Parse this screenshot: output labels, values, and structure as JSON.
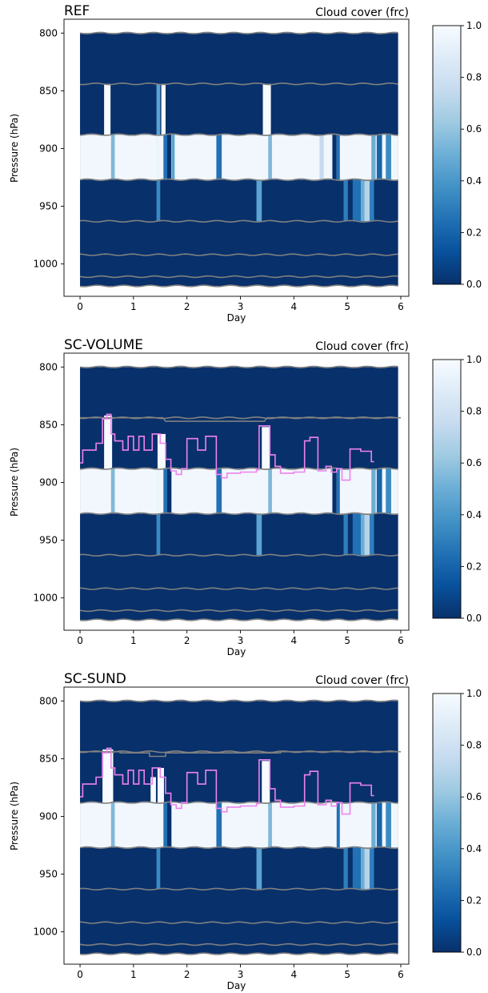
{
  "figure": {
    "colorbar_label_ticks": [
      "0.0",
      "0.2",
      "0.4",
      "0.6",
      "0.8",
      "1.0"
    ],
    "colormap": [
      "#08306b",
      "#08519c",
      "#2171b5",
      "#4292c6",
      "#6baed6",
      "#9ecae1",
      "#c6dbef",
      "#deebf7",
      "#f7fbff"
    ],
    "colors": {
      "level_line": "#808080",
      "trace_line": "#ee82ee",
      "background": "#08306b"
    }
  },
  "chart_data": [
    {
      "type": "heatmap",
      "title": "REF",
      "subtitle": "Cloud cover (frc)",
      "xlabel": "Day",
      "ylabel": "Pressure (hPa)",
      "xticks": [
        "0",
        "1",
        "2",
        "3",
        "4",
        "5",
        "6"
      ],
      "yticks": [
        "800",
        "850",
        "900",
        "950",
        "1000"
      ],
      "xlim": [
        -0.3,
        6.15
      ],
      "ylim": [
        1028,
        788
      ],
      "colorbar_range": [
        0.0,
        1.0
      ],
      "level_lines_hPa": [
        800,
        844,
        888,
        927,
        963,
        992,
        1011,
        1019
      ],
      "cloud_layer": {
        "top_hPa": 888,
        "bottom_hPa": 927,
        "base_value": 0.97
      },
      "column_features": [
        {
          "day": 0.45,
          "width": 0.12,
          "top_hPa": 844,
          "bottom_hPa": 888,
          "value": 1.0
        },
        {
          "day": 1.52,
          "width": 0.08,
          "top_hPa": 844,
          "bottom_hPa": 888,
          "value": 1.0
        },
        {
          "day": 1.43,
          "width": 0.07,
          "top_hPa": 844,
          "bottom_hPa": 888,
          "value": 0.45
        },
        {
          "day": 3.42,
          "width": 0.15,
          "top_hPa": 844,
          "bottom_hPa": 888,
          "value": 1.0
        },
        {
          "day": 0.58,
          "width": 0.07,
          "top_hPa": 888,
          "bottom_hPa": 927,
          "value": 0.55
        },
        {
          "day": 1.42,
          "width": 0.07,
          "top_hPa": 888,
          "bottom_hPa": 927,
          "value": 0.95
        },
        {
          "day": 1.56,
          "width": 0.08,
          "top_hPa": 888,
          "bottom_hPa": 927,
          "value": 0.25
        },
        {
          "day": 1.63,
          "width": 0.08,
          "top_hPa": 888,
          "bottom_hPa": 927,
          "value": 0.0
        },
        {
          "day": 1.72,
          "width": 0.05,
          "top_hPa": 888,
          "bottom_hPa": 927,
          "value": 0.45
        },
        {
          "day": 2.55,
          "width": 0.1,
          "top_hPa": 888,
          "bottom_hPa": 927,
          "value": 0.25
        },
        {
          "day": 3.52,
          "width": 0.07,
          "top_hPa": 888,
          "bottom_hPa": 927,
          "value": 0.55
        },
        {
          "day": 4.48,
          "width": 0.08,
          "top_hPa": 888,
          "bottom_hPa": 927,
          "value": 0.75
        },
        {
          "day": 4.72,
          "width": 0.08,
          "top_hPa": 888,
          "bottom_hPa": 927,
          "value": 0.0
        },
        {
          "day": 4.8,
          "width": 0.06,
          "top_hPa": 888,
          "bottom_hPa": 927,
          "value": 0.25
        },
        {
          "day": 5.45,
          "width": 0.08,
          "top_hPa": 888,
          "bottom_hPa": 927,
          "value": 0.5
        },
        {
          "day": 5.55,
          "width": 0.1,
          "top_hPa": 888,
          "bottom_hPa": 927,
          "value": 0.2
        },
        {
          "day": 5.72,
          "width": 0.1,
          "top_hPa": 888,
          "bottom_hPa": 927,
          "value": 0.35
        },
        {
          "day": 1.43,
          "width": 0.07,
          "top_hPa": 927,
          "bottom_hPa": 963,
          "value": 0.35
        },
        {
          "day": 3.3,
          "width": 0.1,
          "top_hPa": 927,
          "bottom_hPa": 963,
          "value": 0.45
        },
        {
          "day": 4.93,
          "width": 0.08,
          "top_hPa": 927,
          "bottom_hPa": 963,
          "value": 0.3
        },
        {
          "day": 5.1,
          "width": 0.15,
          "top_hPa": 927,
          "bottom_hPa": 963,
          "value": 0.25
        },
        {
          "day": 5.25,
          "width": 0.07,
          "top_hPa": 927,
          "bottom_hPa": 963,
          "value": 0.5
        },
        {
          "day": 5.32,
          "width": 0.1,
          "top_hPa": 927,
          "bottom_hPa": 963,
          "value": 0.7
        },
        {
          "day": 5.42,
          "width": 0.08,
          "top_hPa": 927,
          "bottom_hPa": 963,
          "value": 0.3
        }
      ],
      "trace": null,
      "extra_steps": []
    },
    {
      "type": "heatmap",
      "title": "SC-VOLUME",
      "subtitle": "Cloud cover (frc)",
      "xlabel": "Day",
      "ylabel": "Pressure (hPa)",
      "xticks": [
        "0",
        "1",
        "2",
        "3",
        "4",
        "5",
        "6"
      ],
      "yticks": [
        "800",
        "850",
        "900",
        "950",
        "1000"
      ],
      "xlim": [
        -0.3,
        6.15
      ],
      "ylim": [
        1028,
        788
      ],
      "colorbar_range": [
        0.0,
        1.0
      ],
      "level_lines_hPa": [
        800,
        844,
        888,
        927,
        963,
        992,
        1011,
        1019
      ],
      "cloud_layer": {
        "top_hPa": 888,
        "bottom_hPa": 927,
        "base_value": 0.97
      },
      "column_features": [
        {
          "day": 0.45,
          "width": 0.15,
          "top_hPa": 842,
          "bottom_hPa": 888,
          "value": 1.0
        },
        {
          "day": 1.45,
          "width": 0.15,
          "top_hPa": 858,
          "bottom_hPa": 888,
          "value": 1.0
        },
        {
          "day": 3.4,
          "width": 0.15,
          "top_hPa": 852,
          "bottom_hPa": 888,
          "value": 1.0
        },
        {
          "day": 0.58,
          "width": 0.07,
          "top_hPa": 888,
          "bottom_hPa": 927,
          "value": 0.55
        },
        {
          "day": 1.42,
          "width": 0.07,
          "top_hPa": 888,
          "bottom_hPa": 927,
          "value": 0.95
        },
        {
          "day": 1.56,
          "width": 0.08,
          "top_hPa": 888,
          "bottom_hPa": 927,
          "value": 0.25
        },
        {
          "day": 1.63,
          "width": 0.08,
          "top_hPa": 888,
          "bottom_hPa": 927,
          "value": 0.0
        },
        {
          "day": 2.55,
          "width": 0.1,
          "top_hPa": 888,
          "bottom_hPa": 927,
          "value": 0.25
        },
        {
          "day": 3.52,
          "width": 0.07,
          "top_hPa": 888,
          "bottom_hPa": 927,
          "value": 0.55
        },
        {
          "day": 4.72,
          "width": 0.08,
          "top_hPa": 888,
          "bottom_hPa": 927,
          "value": 0.0
        },
        {
          "day": 4.8,
          "width": 0.06,
          "top_hPa": 888,
          "bottom_hPa": 927,
          "value": 0.25
        },
        {
          "day": 5.45,
          "width": 0.08,
          "top_hPa": 888,
          "bottom_hPa": 927,
          "value": 0.5
        },
        {
          "day": 5.55,
          "width": 0.1,
          "top_hPa": 888,
          "bottom_hPa": 927,
          "value": 0.2
        },
        {
          "day": 5.72,
          "width": 0.1,
          "top_hPa": 888,
          "bottom_hPa": 927,
          "value": 0.35
        },
        {
          "day": 1.43,
          "width": 0.07,
          "top_hPa": 927,
          "bottom_hPa": 963,
          "value": 0.35
        },
        {
          "day": 3.3,
          "width": 0.1,
          "top_hPa": 927,
          "bottom_hPa": 963,
          "value": 0.45
        },
        {
          "day": 4.93,
          "width": 0.08,
          "top_hPa": 927,
          "bottom_hPa": 963,
          "value": 0.3
        },
        {
          "day": 5.1,
          "width": 0.15,
          "top_hPa": 927,
          "bottom_hPa": 963,
          "value": 0.25
        },
        {
          "day": 5.25,
          "width": 0.07,
          "top_hPa": 927,
          "bottom_hPa": 963,
          "value": 0.5
        },
        {
          "day": 5.32,
          "width": 0.1,
          "top_hPa": 927,
          "bottom_hPa": 963,
          "value": 0.7
        },
        {
          "day": 5.42,
          "width": 0.08,
          "top_hPa": 927,
          "bottom_hPa": 963,
          "value": 0.3
        }
      ],
      "extra_steps": [
        {
          "x": [
            0.0,
            1.55,
            1.6,
            3.45,
            3.5,
            6.0
          ],
          "y_hPa": [
            844,
            844,
            847,
            847,
            844,
            844
          ]
        }
      ],
      "trace": {
        "x": [
          0.0,
          0.05,
          0.05,
          0.3,
          0.3,
          0.42,
          0.42,
          0.5,
          0.5,
          0.58,
          0.58,
          0.65,
          0.65,
          0.8,
          0.8,
          0.9,
          0.9,
          1.0,
          1.0,
          1.1,
          1.1,
          1.2,
          1.2,
          1.35,
          1.35,
          1.5,
          1.5,
          1.6,
          1.6,
          1.7,
          1.7,
          1.8,
          1.8,
          1.9,
          1.9,
          2.0,
          2.0,
          2.2,
          2.2,
          2.35,
          2.35,
          2.55,
          2.55,
          2.65,
          2.65,
          2.75,
          2.75,
          3.0,
          3.0,
          3.3,
          3.3,
          3.35,
          3.35,
          3.55,
          3.55,
          3.65,
          3.65,
          3.75,
          3.75,
          4.0,
          4.0,
          4.2,
          4.2,
          4.3,
          4.3,
          4.45,
          4.45,
          4.6,
          4.6,
          4.7,
          4.7,
          4.8,
          4.8,
          4.9,
          4.9,
          5.05,
          5.05,
          5.25,
          5.25,
          5.45,
          5.45,
          5.5
        ],
        "y_hPa": [
          883,
          883,
          872,
          872,
          866,
          866,
          845,
          845,
          841,
          841,
          858,
          858,
          864,
          864,
          872,
          872,
          860,
          860,
          872,
          872,
          860,
          860,
          872,
          872,
          858,
          858,
          866,
          866,
          880,
          880,
          890,
          890,
          893,
          893,
          888,
          888,
          862,
          862,
          872,
          872,
          860,
          860,
          893,
          893,
          896,
          896,
          892,
          892,
          891,
          891,
          889,
          889,
          851,
          851,
          876,
          876,
          886,
          886,
          892,
          892,
          891,
          891,
          864,
          864,
          861,
          861,
          890,
          890,
          886,
          886,
          891,
          891,
          888,
          888,
          898,
          898,
          871,
          871,
          873,
          873,
          882,
          882
        ]
      }
    },
    {
      "type": "heatmap",
      "title": "SC-SUND",
      "subtitle": "Cloud cover (frc)",
      "xlabel": "Day",
      "ylabel": "Pressure (hPa)",
      "xticks": [
        "0",
        "1",
        "2",
        "3",
        "4",
        "5",
        "6"
      ],
      "yticks": [
        "800",
        "850",
        "900",
        "950",
        "1000"
      ],
      "xlim": [
        -0.3,
        6.15
      ],
      "ylim": [
        1028,
        788
      ],
      "colorbar_range": [
        0.0,
        1.0
      ],
      "level_lines_hPa": [
        800,
        844,
        888,
        927,
        963,
        992,
        1011,
        1019
      ],
      "cloud_layer": {
        "top_hPa": 888,
        "bottom_hPa": 927,
        "base_value": 0.97
      },
      "column_features": [
        {
          "day": 0.42,
          "width": 0.2,
          "top_hPa": 842,
          "bottom_hPa": 888,
          "value": 1.0
        },
        {
          "day": 1.32,
          "width": 0.1,
          "top_hPa": 866,
          "bottom_hPa": 888,
          "value": 1.0
        },
        {
          "day": 1.45,
          "width": 0.12,
          "top_hPa": 858,
          "bottom_hPa": 888,
          "value": 1.0
        },
        {
          "day": 3.4,
          "width": 0.15,
          "top_hPa": 852,
          "bottom_hPa": 888,
          "value": 1.0
        },
        {
          "day": 0.58,
          "width": 0.07,
          "top_hPa": 888,
          "bottom_hPa": 927,
          "value": 0.55
        },
        {
          "day": 1.56,
          "width": 0.08,
          "top_hPa": 888,
          "bottom_hPa": 927,
          "value": 0.25
        },
        {
          "day": 1.63,
          "width": 0.08,
          "top_hPa": 888,
          "bottom_hPa": 927,
          "value": 0.0
        },
        {
          "day": 2.55,
          "width": 0.1,
          "top_hPa": 888,
          "bottom_hPa": 927,
          "value": 0.25
        },
        {
          "day": 3.52,
          "width": 0.07,
          "top_hPa": 888,
          "bottom_hPa": 927,
          "value": 0.55
        },
        {
          "day": 4.8,
          "width": 0.06,
          "top_hPa": 888,
          "bottom_hPa": 927,
          "value": 0.25
        },
        {
          "day": 5.45,
          "width": 0.08,
          "top_hPa": 888,
          "bottom_hPa": 927,
          "value": 0.5
        },
        {
          "day": 5.55,
          "width": 0.1,
          "top_hPa": 888,
          "bottom_hPa": 927,
          "value": 0.2
        },
        {
          "day": 5.72,
          "width": 0.1,
          "top_hPa": 888,
          "bottom_hPa": 927,
          "value": 0.35
        },
        {
          "day": 1.43,
          "width": 0.07,
          "top_hPa": 927,
          "bottom_hPa": 963,
          "value": 0.35
        },
        {
          "day": 3.3,
          "width": 0.1,
          "top_hPa": 927,
          "bottom_hPa": 963,
          "value": 0.45
        },
        {
          "day": 4.93,
          "width": 0.08,
          "top_hPa": 927,
          "bottom_hPa": 963,
          "value": 0.3
        },
        {
          "day": 5.1,
          "width": 0.15,
          "top_hPa": 927,
          "bottom_hPa": 963,
          "value": 0.25
        },
        {
          "day": 5.25,
          "width": 0.07,
          "top_hPa": 927,
          "bottom_hPa": 963,
          "value": 0.5
        },
        {
          "day": 5.32,
          "width": 0.1,
          "top_hPa": 927,
          "bottom_hPa": 963,
          "value": 0.7
        },
        {
          "day": 5.42,
          "width": 0.08,
          "top_hPa": 927,
          "bottom_hPa": 963,
          "value": 0.3
        }
      ],
      "extra_steps": [
        {
          "x": [
            0.0,
            0.75,
            0.75,
            1.3,
            1.3,
            1.6,
            1.6,
            3.45,
            3.45,
            3.75,
            3.75,
            6.0
          ],
          "y_hPa": [
            844,
            844,
            845,
            845,
            848,
            848,
            845,
            845,
            845,
            845,
            844,
            844
          ]
        }
      ],
      "trace": {
        "x": [
          0.0,
          0.05,
          0.05,
          0.3,
          0.3,
          0.42,
          0.42,
          0.5,
          0.5,
          0.58,
          0.58,
          0.65,
          0.65,
          0.8,
          0.8,
          0.9,
          0.9,
          1.0,
          1.0,
          1.1,
          1.1,
          1.2,
          1.2,
          1.35,
          1.35,
          1.5,
          1.5,
          1.6,
          1.6,
          1.7,
          1.7,
          1.8,
          1.8,
          1.9,
          1.9,
          2.0,
          2.0,
          2.2,
          2.2,
          2.35,
          2.35,
          2.55,
          2.55,
          2.65,
          2.65,
          2.75,
          2.75,
          3.0,
          3.0,
          3.3,
          3.3,
          3.35,
          3.35,
          3.55,
          3.55,
          3.65,
          3.65,
          3.75,
          3.75,
          4.0,
          4.0,
          4.2,
          4.2,
          4.3,
          4.3,
          4.45,
          4.45,
          4.6,
          4.6,
          4.7,
          4.7,
          4.8,
          4.8,
          4.9,
          4.9,
          5.05,
          5.05,
          5.25,
          5.25,
          5.45,
          5.45,
          5.5
        ],
        "y_hPa": [
          883,
          883,
          872,
          872,
          866,
          866,
          845,
          845,
          841,
          841,
          858,
          858,
          864,
          864,
          872,
          872,
          860,
          860,
          872,
          872,
          860,
          860,
          872,
          872,
          858,
          858,
          866,
          866,
          880,
          880,
          890,
          890,
          893,
          893,
          888,
          888,
          862,
          862,
          872,
          872,
          860,
          860,
          893,
          893,
          896,
          896,
          892,
          892,
          891,
          891,
          889,
          889,
          851,
          851,
          876,
          876,
          886,
          886,
          892,
          892,
          891,
          891,
          864,
          864,
          861,
          861,
          890,
          890,
          886,
          886,
          891,
          891,
          888,
          888,
          898,
          898,
          871,
          871,
          873,
          873,
          882,
          882
        ]
      }
    }
  ]
}
